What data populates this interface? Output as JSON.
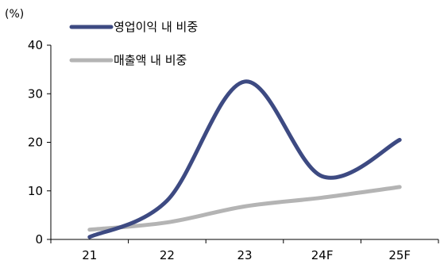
{
  "chart_data": {
    "type": "line",
    "unit_label": "(%)",
    "categories": [
      "21",
      "22",
      "23",
      "24F",
      "25F"
    ],
    "yticks": [
      "0",
      "10",
      "20",
      "30",
      "40"
    ],
    "ylim": [
      0,
      40
    ],
    "grid": false,
    "legend_placement": "top-left",
    "series": [
      {
        "name": "영업이익 내 비중",
        "color": "#3d4a82",
        "values": [
          0.5,
          8,
          32.5,
          13,
          20.5
        ]
      },
      {
        "name": "매출액 내 비중",
        "color": "#b4b4b4",
        "values": [
          2,
          3.5,
          6.8,
          8.6,
          10.8
        ]
      }
    ]
  }
}
